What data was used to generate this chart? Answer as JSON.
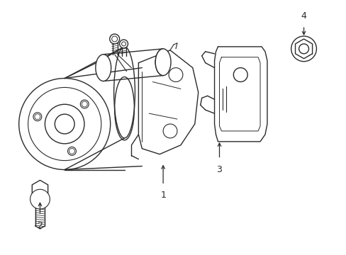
{
  "background_color": "#ffffff",
  "line_color": "#2a2a2a",
  "line_width": 1.0,
  "label_color": "#000000",
  "labels": [
    "1",
    "2",
    "3",
    "4"
  ],
  "figsize": [
    4.89,
    3.6
  ],
  "dpi": 100
}
